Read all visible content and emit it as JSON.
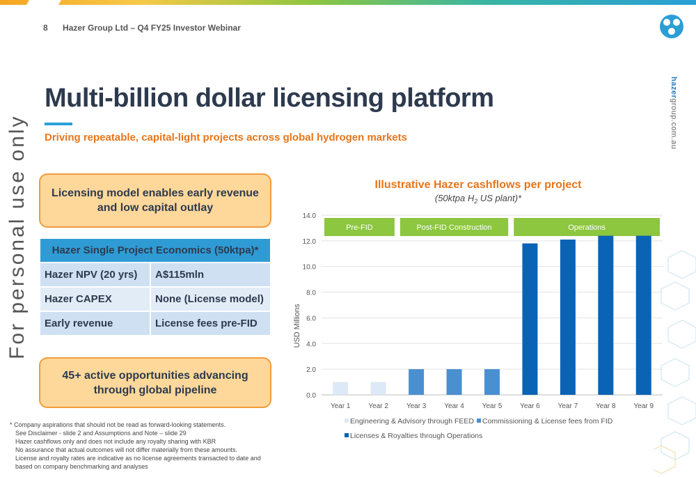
{
  "header": {
    "page_number": "8",
    "text": "Hazer Group Ltd – Q4 FY25 Investor Webinar"
  },
  "website": {
    "bold": "hazer",
    "rest": "group.com.au"
  },
  "watermark": "For personal use only",
  "title": "Multi-billion dollar licensing platform",
  "subtitle": "Driving repeatable, capital-light projects across global hydrogen markets",
  "callouts": {
    "top": "Licensing model enables early revenue and low capital outlay",
    "bottom": "45+ active opportunities advancing through global pipeline"
  },
  "economics": {
    "heading": "Hazer Single Project Economics (50ktpa)*",
    "rows": [
      {
        "label": "Hazer NPV (20 yrs)",
        "value": "A$115mln"
      },
      {
        "label": "Hazer CAPEX",
        "value": "None (License model)"
      },
      {
        "label": "Early revenue",
        "value": "License fees pre-FID"
      }
    ]
  },
  "footnotes": [
    "* Company aspirations that should not be read as forward-looking statements.",
    "See Disclaimer - slide 2 and Assumptions and Note – slide 29",
    "Hazer cashflows only and does not include any royalty sharing with KBR",
    "No assurance that actual outcomes will not differ materially from these amounts.",
    "License and royalty rates are indicative as no license agreements transacted to date and",
    "based on company benchmarking and analyses"
  ],
  "colors": {
    "accent_orange": "#e8751a",
    "title_navy": "#2d3a4e",
    "blue": "#2f9bd5",
    "green": "#8dc63f"
  },
  "chart_data": {
    "type": "bar",
    "title": "Illustrative Hazer cashflows per project",
    "subtitle_pre": "(50ktpa H",
    "subtitle_sub": "2",
    "subtitle_post": " US plant)*",
    "ylabel": "USD Millions",
    "ylim": [
      0,
      14
    ],
    "yticks": [
      "0.0",
      "2.0",
      "4.0",
      "6.0",
      "8.0",
      "10.0",
      "12.0",
      "14.0"
    ],
    "categories": [
      "Year 1",
      "Year 2",
      "Year 3",
      "Year 4",
      "Year 5",
      "Year 6",
      "Year 7",
      "Year 8",
      "Year 9"
    ],
    "series": [
      {
        "name": "Engineering & Advisory through FEED",
        "color": "#dde9f6",
        "values": [
          1.0,
          1.0,
          null,
          null,
          null,
          null,
          null,
          null,
          null
        ]
      },
      {
        "name": "Commissioning & License fees from FID",
        "color": "#4a90d0",
        "values": [
          null,
          null,
          2.0,
          2.0,
          2.0,
          null,
          null,
          null,
          null
        ]
      },
      {
        "name": "Licenses & Royalties through Operations",
        "color": "#0b63b5",
        "values": [
          null,
          null,
          null,
          null,
          null,
          11.8,
          12.1,
          12.4,
          12.4
        ]
      }
    ],
    "phases": [
      {
        "label": "Pre-FID",
        "from": 0,
        "to": 1
      },
      {
        "label": "Post-FID Construction",
        "from": 2,
        "to": 4
      },
      {
        "label": "Operations",
        "from": 5,
        "to": 8
      }
    ],
    "grid": true,
    "legend_position": "bottom"
  }
}
